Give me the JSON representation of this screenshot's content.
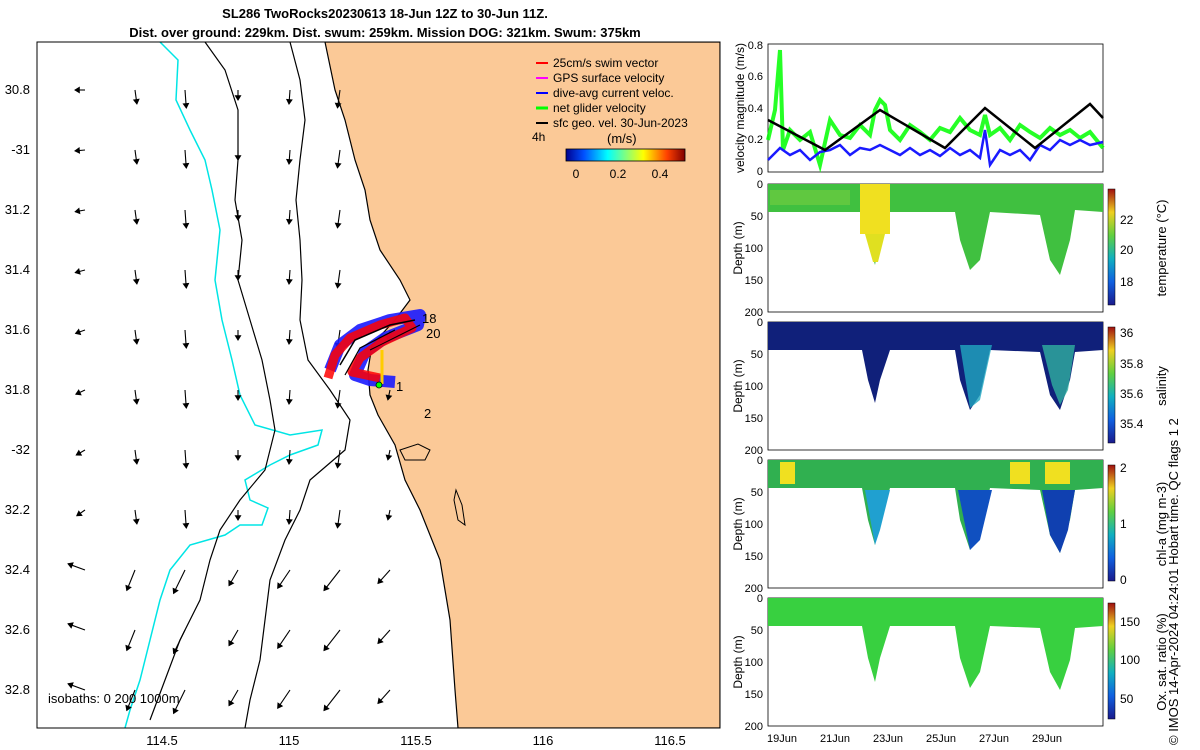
{
  "title_line1": "SL286 TwoRocks20230613 18-Jun 12Z to 30-Jun 11Z.",
  "title_line2": "Dist. over ground: 229km. Dist. swum: 259km. Mission DOG: 321km. Swum: 375km",
  "map": {
    "lat_ticks": [
      "30.8",
      "-31",
      "31.2",
      "31.4",
      "31.6",
      "31.8",
      "-32",
      "32.2",
      "32.4",
      "32.6",
      "32.8"
    ],
    "lon_ticks": [
      "114.5",
      "115",
      "115.5",
      "116",
      "116.5"
    ],
    "legend": [
      {
        "label": "25cm/s swim vector",
        "color": "#ff0000"
      },
      {
        "label": "GPS surface velocity",
        "color": "#ff00ff"
      },
      {
        "label": "dive-avg current veloc.",
        "color": "#0000ff"
      },
      {
        "label": "net glider velocity",
        "color": "#00ff00"
      },
      {
        "label": "sfc geo. vel. 30-Jun-2023",
        "color": "#000000"
      }
    ],
    "legend_4h": "4h",
    "colorbar_label": "(m/s)",
    "colorbar_ticks": [
      "0",
      "0.2",
      "0.4"
    ],
    "isobaths_text": "isobaths: 0  200  1000m",
    "track_labels": [
      "18",
      "20",
      "1",
      "2"
    ],
    "colors": {
      "land": "#fbc997",
      "isobath_200": "#00e5e5",
      "track_red": "#ff0000",
      "track_blue": "#1a1aff"
    }
  },
  "panels": [
    {
      "ylabel": "velocity magnitude (m/s)",
      "yticks": [
        "0.8",
        "0.6",
        "0.4",
        "0.2",
        "0"
      ]
    },
    {
      "ylabel": "Depth (m)",
      "yticks": [
        "0",
        "50",
        "100",
        "150",
        "200"
      ],
      "cb_label": "temperature (°C)",
      "cb_ticks": [
        "22",
        "20",
        "18"
      ]
    },
    {
      "ylabel": "Depth (m)",
      "yticks": [
        "0",
        "50",
        "100",
        "150",
        "200"
      ],
      "cb_label": "salinity",
      "cb_ticks": [
        "36",
        "35.8",
        "35.6",
        "35.4"
      ]
    },
    {
      "ylabel": "Depth (m)",
      "yticks": [
        "0",
        "50",
        "100",
        "150",
        "200"
      ],
      "cb_label": "chl-a (mg m-3)",
      "cb_ticks": [
        "2",
        "1",
        "0"
      ]
    },
    {
      "ylabel": "Depth (m)",
      "yticks": [
        "0",
        "50",
        "100",
        "150",
        "200"
      ],
      "cb_label": "Ox. sat. ratio (%)",
      "cb_ticks": [
        "150",
        "100",
        "50"
      ]
    }
  ],
  "time_ticks": [
    "19Jun",
    "21Jun",
    "23Jun",
    "25Jun",
    "27Jun",
    "29Jun"
  ],
  "copyright": "© IMOS 14-Apr-2024 04:24:01 Hobart time. QC flags 1  2"
}
